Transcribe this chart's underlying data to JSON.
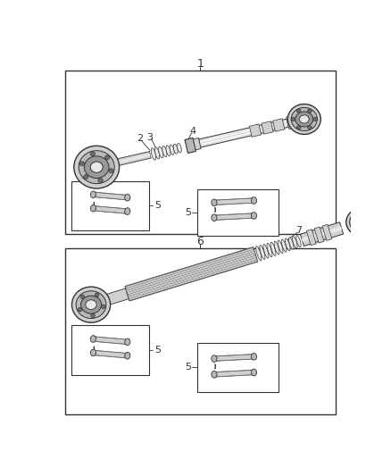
{
  "bg_color": "#ffffff",
  "line_color": "#333333",
  "gray1": "#e8e8e8",
  "gray2": "#d0d0d0",
  "gray3": "#b8b8b8",
  "gray4": "#989898",
  "gray5": "#707070",
  "gray6": "#505050",
  "label_1": "1",
  "label_2": "2",
  "label_3": "3",
  "label_4": "4",
  "label_5": "5",
  "label_6": "6",
  "label_7": "7",
  "font_size": 8.5
}
